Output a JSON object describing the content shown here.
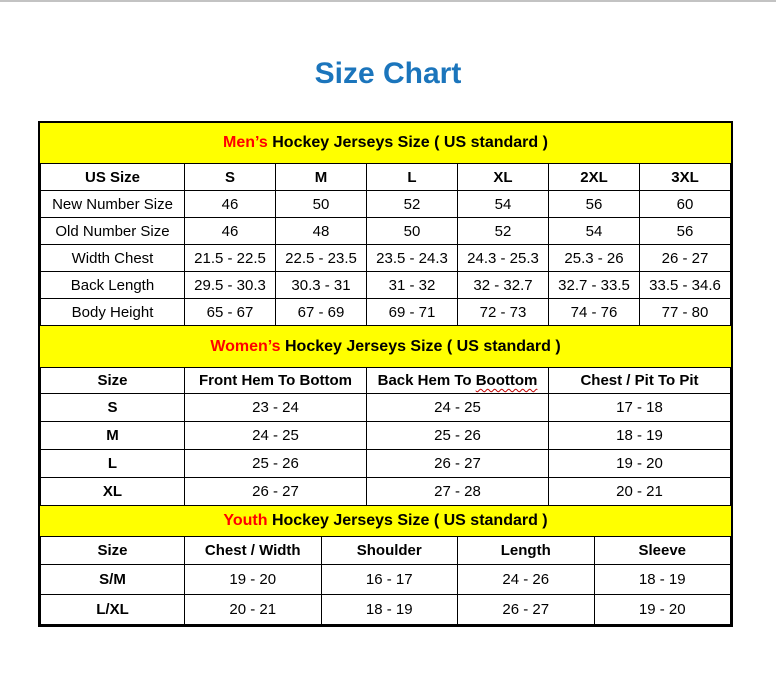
{
  "title": "Size Chart",
  "colors": {
    "title_blue": "#1B75BC",
    "banner_background": "#FFFF00",
    "banner_highlight_red": "#FF0000",
    "table_border": "#000000",
    "spellcheck_squiggle": "#C00000"
  },
  "sections": [
    {
      "id": "mens",
      "banner": {
        "highlight": "Men’s",
        "rest": " Hockey Jerseys Size ( US standard )"
      },
      "columns": [
        {
          "text": "US Size"
        },
        {
          "text": "S"
        },
        {
          "text": "M"
        },
        {
          "text": "L"
        },
        {
          "text": "XL"
        },
        {
          "text": "2XL"
        },
        {
          "text": "3XL"
        }
      ],
      "rows": [
        {
          "label": "New Number Size",
          "values": [
            "46",
            "50",
            "52",
            "54",
            "56",
            "60"
          ]
        },
        {
          "label": "Old Number Size",
          "values": [
            "46",
            "48",
            "50",
            "52",
            "54",
            "56"
          ]
        },
        {
          "label": "Width Chest",
          "values": [
            "21.5 - 22.5",
            "22.5 - 23.5",
            "23.5 - 24.3",
            "24.3 - 25.3",
            "25.3 - 26",
            "26 - 27"
          ]
        },
        {
          "label": "Back Length",
          "values": [
            "29.5 - 30.3",
            "30.3 - 31",
            "31 - 32",
            "32 - 32.7",
            "32.7 - 33.5",
            "33.5 - 34.6"
          ]
        },
        {
          "label": "Body Height",
          "values": [
            "65 - 67",
            "67 - 69",
            "69 - 71",
            "72 - 73",
            "74 - 76",
            "77 - 80"
          ]
        }
      ]
    },
    {
      "id": "womens",
      "banner": {
        "highlight": "Women’s",
        "rest": " Hockey Jerseys Size ( US standard )"
      },
      "columns": [
        {
          "text": "Size"
        },
        {
          "text": "Front Hem To Bottom"
        },
        {
          "text": "Back Hem To ",
          "misspelled": "Boottom"
        },
        {
          "text": "Chest / Pit To Pit"
        }
      ],
      "rows": [
        {
          "label": "S",
          "values": [
            "23 - 24",
            "24 - 25",
            "17 - 18"
          ]
        },
        {
          "label": "M",
          "values": [
            "24 - 25",
            "25 - 26",
            "18 - 19"
          ]
        },
        {
          "label": "L",
          "values": [
            "25 - 26",
            "26 - 27",
            "19 - 20"
          ]
        },
        {
          "label": "XL",
          "values": [
            "26 - 27",
            "27 - 28",
            "20 - 21"
          ]
        }
      ]
    },
    {
      "id": "youth",
      "banner": {
        "highlight": "Youth",
        "rest": " Hockey Jerseys Size ( US standard )"
      },
      "columns": [
        {
          "text": "Size"
        },
        {
          "text": "Chest / Width"
        },
        {
          "text": "Shoulder"
        },
        {
          "text": "Length"
        },
        {
          "text": "Sleeve"
        }
      ],
      "rows": [
        {
          "label": "S/M",
          "values": [
            "19 - 20",
            "16 - 17",
            "24 - 26",
            "18 - 19"
          ]
        },
        {
          "label": "L/XL",
          "values": [
            "20 - 21",
            "18 - 19",
            "26 - 27",
            "19 - 20"
          ]
        }
      ]
    }
  ]
}
